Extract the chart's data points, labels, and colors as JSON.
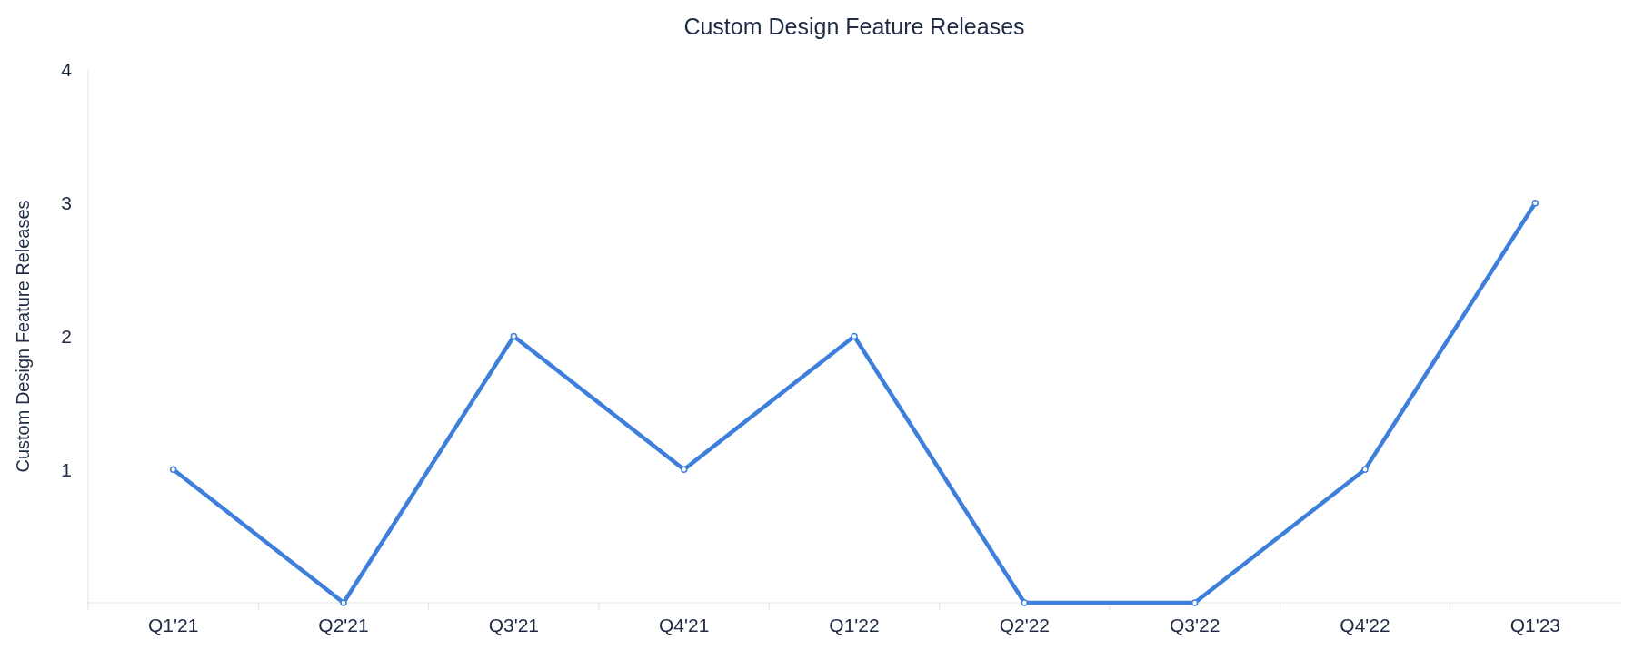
{
  "chart_data": {
    "type": "line",
    "title": "Custom Design Feature Releases",
    "ylabel": "Custom Design Feature Releases",
    "categories": [
      "Q1'21",
      "Q2'21",
      "Q3'21",
      "Q4'21",
      "Q1'22",
      "Q2'22",
      "Q3'22",
      "Q4'22",
      "Q1'23"
    ],
    "series": [
      {
        "color": "#3f7fdc",
        "values": [
          1,
          0,
          2,
          1,
          2,
          0,
          0,
          1,
          3
        ]
      }
    ],
    "ylim": [
      0,
      4
    ],
    "yticks": [
      1,
      2,
      3,
      4
    ],
    "marker": "circle",
    "line_style": "solid",
    "grid": false
  }
}
